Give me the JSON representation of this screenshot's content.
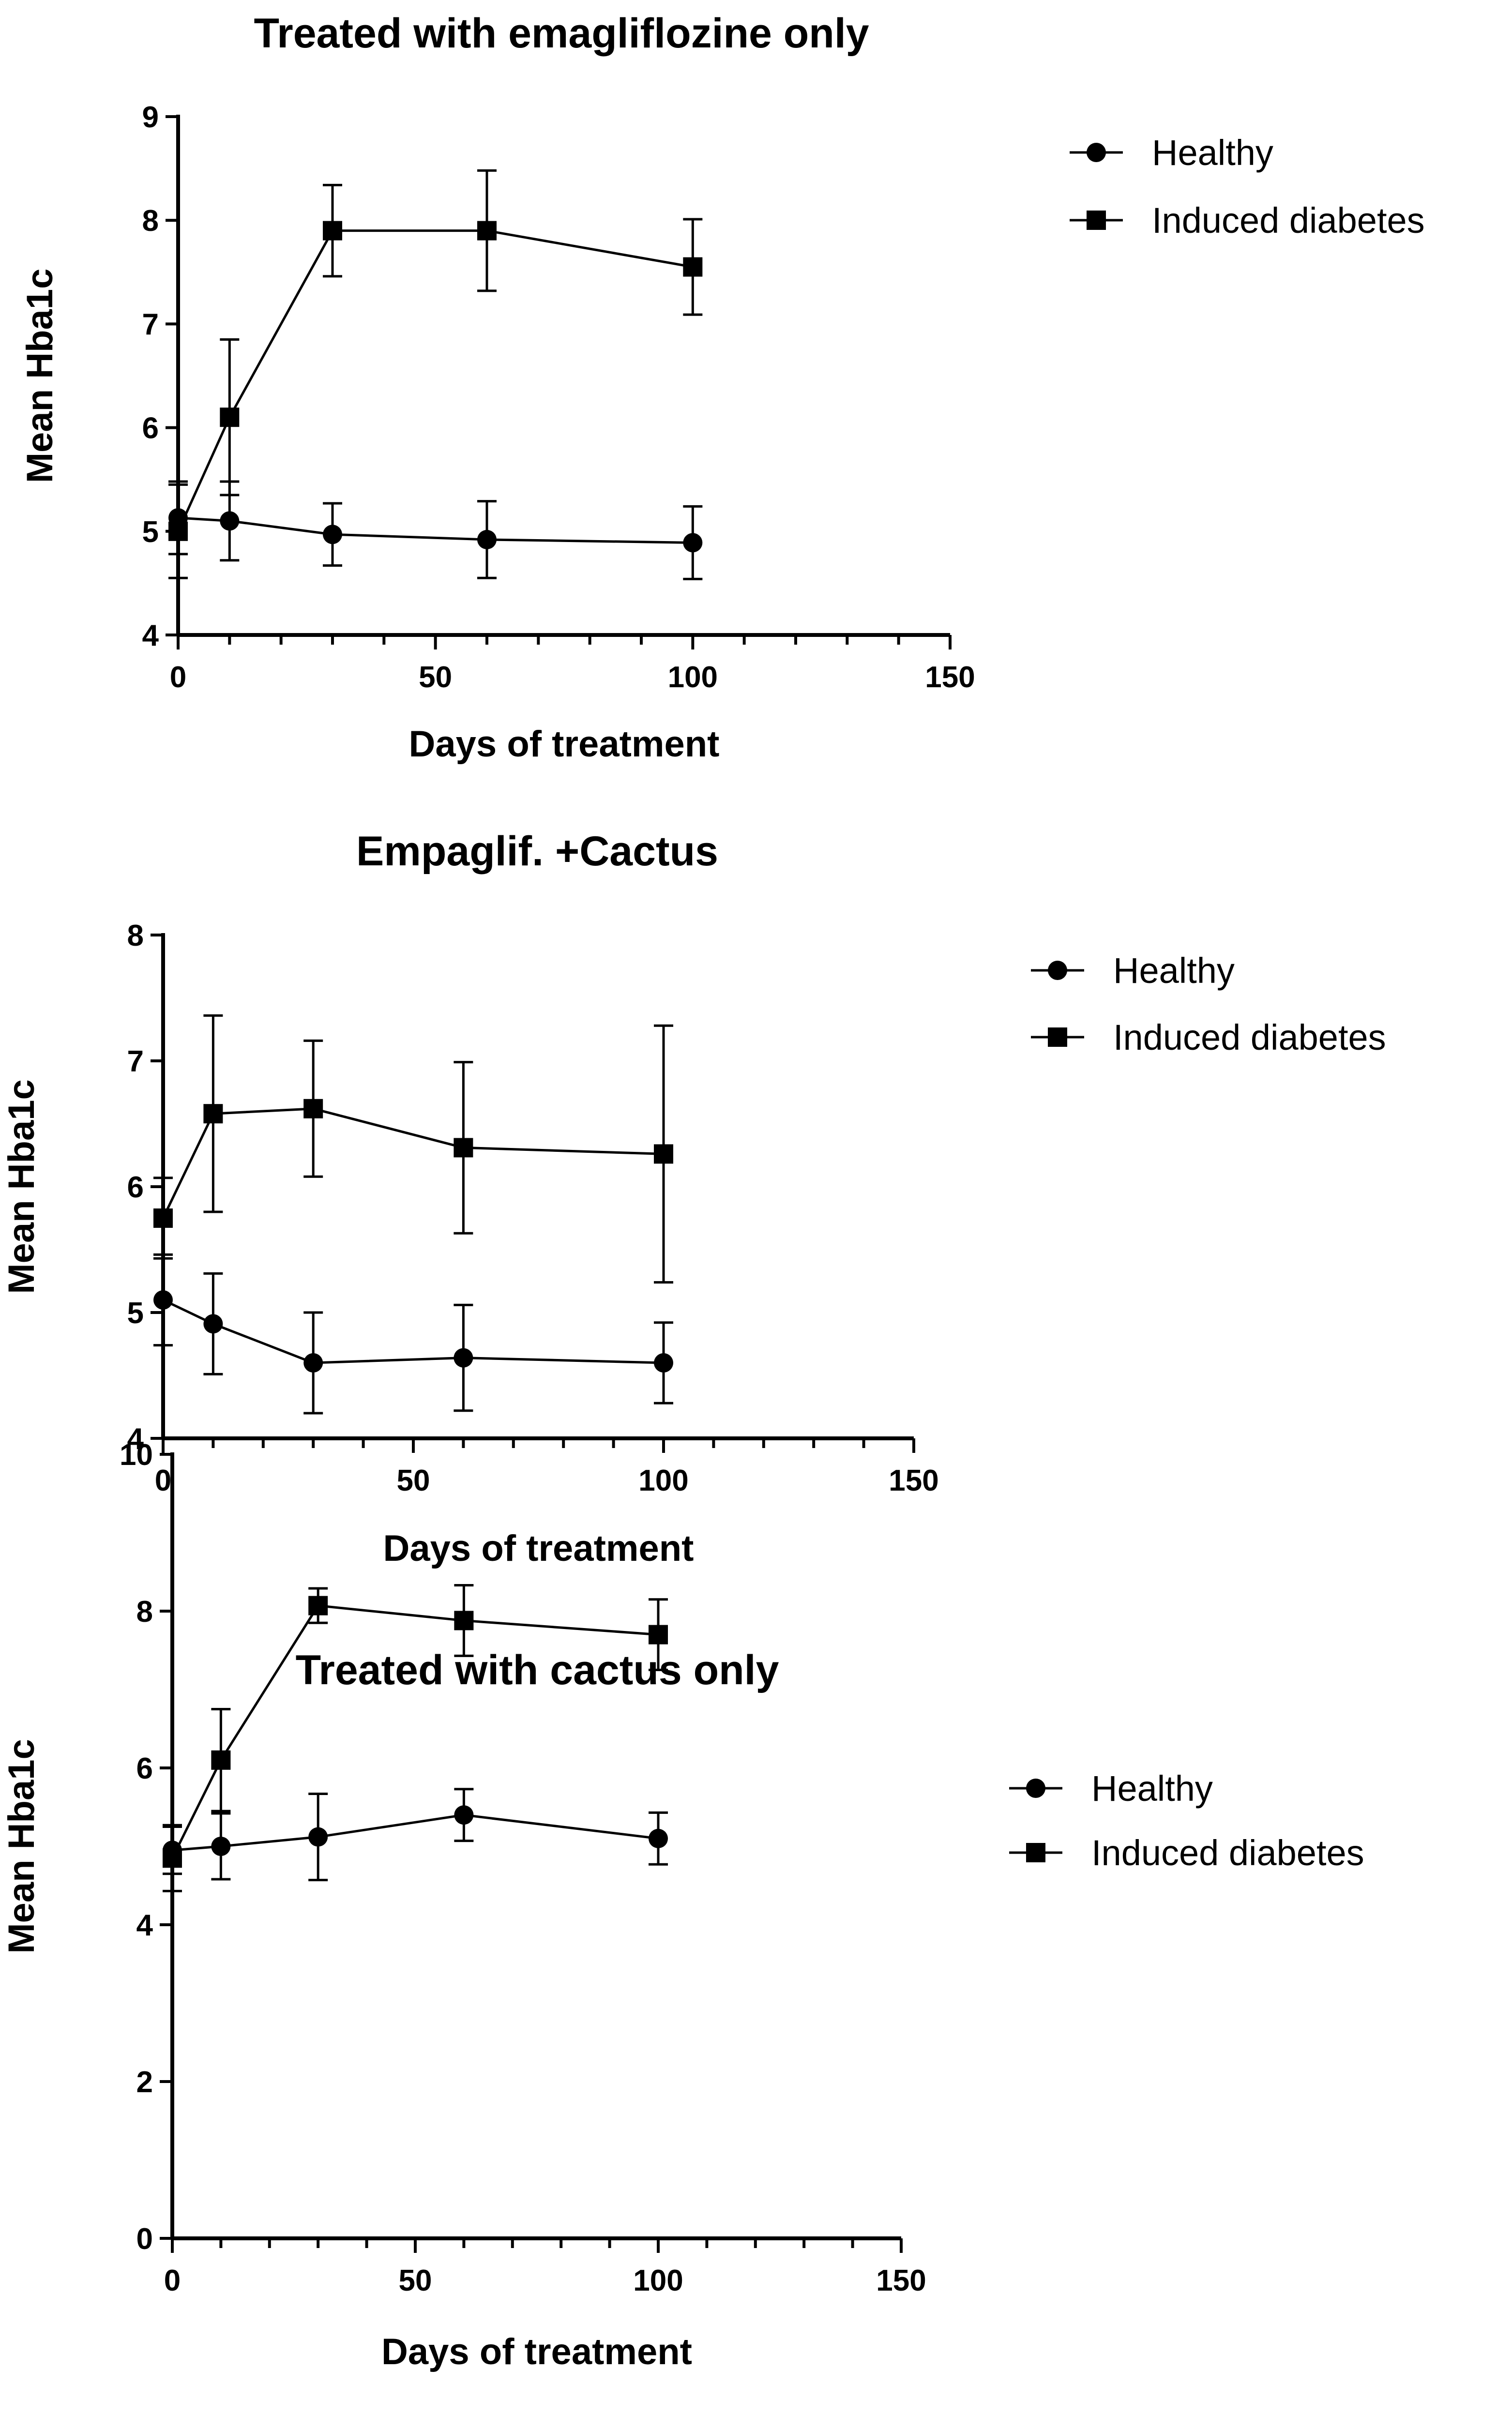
{
  "colors": {
    "ink": "#000000",
    "background": "#ffffff"
  },
  "chart_data": [
    {
      "type": "line",
      "title": "Treated with emagliflozine only",
      "xlabel": "Days of treatment",
      "ylabel": "Mean Hba1c",
      "xlim": [
        0,
        150
      ],
      "ylim": [
        4,
        9
      ],
      "xticks": [
        0,
        50,
        100,
        150
      ],
      "yticks": [
        4,
        5,
        6,
        7,
        8,
        9
      ],
      "x_minor_step": 10,
      "legend_position": "top-right",
      "x": [
        0,
        10,
        30,
        60,
        100
      ],
      "series": [
        {
          "name": "Healthy",
          "marker": "circle",
          "values": [
            5.13,
            5.1,
            4.97,
            4.92,
            4.89
          ],
          "errors": [
            0.35,
            0.38,
            0.3,
            0.37,
            0.35
          ]
        },
        {
          "name": "Induced diabetes",
          "marker": "square",
          "values": [
            5.0,
            6.1,
            7.9,
            7.9,
            7.55
          ],
          "errors": [
            0.45,
            0.75,
            0.44,
            0.58,
            0.46
          ]
        }
      ]
    },
    {
      "type": "line",
      "title": "Empaglif. +Cactus",
      "xlabel": "Days of treatment",
      "ylabel": "Mean Hba1c",
      "xlim": [
        0,
        150
      ],
      "ylim": [
        4,
        8
      ],
      "xticks": [
        0,
        50,
        100,
        150
      ],
      "yticks": [
        4,
        5,
        6,
        7,
        8
      ],
      "x_minor_step": 10,
      "legend_position": "top-right",
      "x": [
        0,
        10,
        30,
        60,
        100
      ],
      "series": [
        {
          "name": "Healthy",
          "marker": "circle",
          "values": [
            5.1,
            4.91,
            4.6,
            4.64,
            4.6
          ],
          "errors": [
            0.36,
            0.4,
            0.4,
            0.42,
            0.32
          ]
        },
        {
          "name": "Induced diabetes",
          "marker": "square",
          "values": [
            5.75,
            6.58,
            6.62,
            6.31,
            6.26
          ],
          "errors": [
            0.32,
            0.78,
            0.54,
            0.68,
            1.02
          ]
        }
      ]
    },
    {
      "type": "line",
      "title": "Treated with cactus only",
      "xlabel": "Days of treatment",
      "ylabel": "Mean Hba1c",
      "xlim": [
        0,
        150
      ],
      "ylim": [
        0,
        10
      ],
      "xticks": [
        0,
        50,
        100,
        150
      ],
      "yticks": [
        0,
        2,
        4,
        6,
        8,
        10
      ],
      "x_minor_step": 10,
      "legend_position": "top-right",
      "x": [
        0,
        10,
        30,
        60,
        100
      ],
      "series": [
        {
          "name": "Healthy",
          "marker": "circle",
          "values": [
            4.95,
            5.0,
            5.12,
            5.4,
            5.1
          ],
          "errors": [
            0.3,
            0.42,
            0.55,
            0.33,
            0.33
          ]
        },
        {
          "name": "Induced diabetes",
          "marker": "square",
          "values": [
            4.85,
            6.1,
            8.07,
            7.88,
            7.7
          ],
          "errors": [
            0.42,
            0.65,
            0.22,
            0.45,
            0.45
          ]
        }
      ]
    }
  ]
}
